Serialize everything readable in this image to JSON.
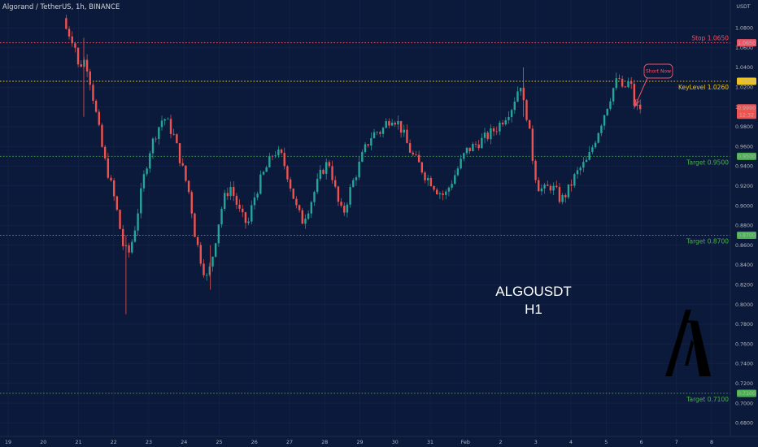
{
  "symbol_title": "Algorand / TetherUS, 1h, BINANCE",
  "currency_label": "USDT",
  "watermark": {
    "line1": "ALGOUSDT",
    "line2": "H1"
  },
  "annotation": {
    "text": "Short Now"
  },
  "colors": {
    "background": "#0b1a3a",
    "bull": "#26a69a",
    "bear": "#ef5350",
    "stop": "#f05365",
    "key": "#f0c419",
    "target": "#4caf50",
    "axis_text": "#b2b5be"
  },
  "chart_data": {
    "type": "candlestick",
    "title": "Algorand / TetherUS, 1h, BINANCE",
    "y_axis": {
      "unit": "USDT",
      "range": [
        0.67,
        1.095
      ],
      "ticks": [
        "1.0800",
        "1.0600",
        "1.0400",
        "1.0200",
        "1.0000",
        "0.9800",
        "0.9600",
        "0.9400",
        "0.9200",
        "0.9000",
        "0.8800",
        "0.8600",
        "0.8400",
        "0.8200",
        "0.8000",
        "0.7800",
        "0.7600",
        "0.7400",
        "0.7200",
        "0.7000",
        "0.6800"
      ]
    },
    "x_axis": {
      "ticks": [
        {
          "label": "19",
          "pos": 0.0
        },
        {
          "label": "20",
          "pos": 1.0
        },
        {
          "label": "21",
          "pos": 2.0
        },
        {
          "label": "22",
          "pos": 3.0
        },
        {
          "label": "23",
          "pos": 4.0
        },
        {
          "label": "24",
          "pos": 5.0
        },
        {
          "label": "25",
          "pos": 6.0
        },
        {
          "label": "26",
          "pos": 7.0
        },
        {
          "label": "27",
          "pos": 8.0
        },
        {
          "label": "28",
          "pos": 9.0
        },
        {
          "label": "29",
          "pos": 10.0
        },
        {
          "label": "30",
          "pos": 11.0
        },
        {
          "label": "31",
          "pos": 12.0
        },
        {
          "label": "Feb",
          "pos": 13.0
        },
        {
          "label": "2",
          "pos": 14.0
        },
        {
          "label": "3",
          "pos": 15.0
        },
        {
          "label": "4",
          "pos": 16.0
        },
        {
          "label": "5",
          "pos": 17.0
        },
        {
          "label": "6",
          "pos": 18.0
        },
        {
          "label": "7",
          "pos": 19.0
        },
        {
          "label": "8",
          "pos": 20.0
        }
      ]
    },
    "levels": [
      {
        "name": "Stop",
        "value": 1.065,
        "label": "Stop 1.0650",
        "badge": "1.0650",
        "kind": "stop"
      },
      {
        "name": "KeyLevel",
        "value": 1.026,
        "label": "KeyLevel 1.0260",
        "badge": "1.0260",
        "kind": "key"
      },
      {
        "name": "Target",
        "value": 0.95,
        "label": "Target 0.9500",
        "badge": "0.9500",
        "kind": "target"
      },
      {
        "name": "Target",
        "value": 0.87,
        "label": "Target 0.8700",
        "badge": "0.8700",
        "kind": "target"
      },
      {
        "name": "Target",
        "value": 0.71,
        "label": "Target 0.7100",
        "badge": "0.7100",
        "kind": "target"
      }
    ],
    "last_price": {
      "value": 0.999,
      "label": "0.9990",
      "countdown": "12:32"
    },
    "price_path": [
      [
        1.65,
        1.09
      ],
      [
        1.72,
        1.08
      ],
      [
        1.9,
        1.07
      ],
      [
        2.0,
        1.06
      ],
      [
        2.1,
        1.035
      ],
      [
        2.2,
        1.05
      ],
      [
        2.35,
        1.04
      ],
      [
        2.5,
        1.01
      ],
      [
        2.65,
        0.98
      ],
      [
        2.8,
        0.95
      ],
      [
        2.95,
        0.93
      ],
      [
        3.15,
        0.9
      ],
      [
        3.35,
        0.86
      ],
      [
        3.5,
        0.85
      ],
      [
        3.65,
        0.87
      ],
      [
        3.8,
        0.9
      ],
      [
        3.95,
        0.93
      ],
      [
        4.1,
        0.955
      ],
      [
        4.3,
        0.975
      ],
      [
        4.5,
        0.99
      ],
      [
        4.6,
        0.985
      ],
      [
        4.8,
        0.97
      ],
      [
        4.95,
        0.95
      ],
      [
        5.1,
        0.93
      ],
      [
        5.25,
        0.91
      ],
      [
        5.4,
        0.87
      ],
      [
        5.6,
        0.84
      ],
      [
        5.75,
        0.825
      ],
      [
        5.9,
        0.85
      ],
      [
        6.05,
        0.88
      ],
      [
        6.2,
        0.905
      ],
      [
        6.4,
        0.92
      ],
      [
        6.55,
        0.905
      ],
      [
        6.7,
        0.89
      ],
      [
        6.9,
        0.88
      ],
      [
        7.05,
        0.905
      ],
      [
        7.25,
        0.925
      ],
      [
        7.45,
        0.94
      ],
      [
        7.65,
        0.955
      ],
      [
        7.85,
        0.95
      ],
      [
        8.0,
        0.935
      ],
      [
        8.15,
        0.915
      ],
      [
        8.3,
        0.895
      ],
      [
        8.45,
        0.885
      ],
      [
        8.65,
        0.9
      ],
      [
        8.85,
        0.92
      ],
      [
        9.0,
        0.935
      ],
      [
        9.2,
        0.945
      ],
      [
        9.3,
        0.93
      ],
      [
        9.45,
        0.905
      ],
      [
        9.6,
        0.89
      ],
      [
        9.8,
        0.915
      ],
      [
        10.0,
        0.935
      ],
      [
        10.2,
        0.955
      ],
      [
        10.4,
        0.97
      ],
      [
        10.55,
        0.975
      ],
      [
        10.7,
        0.975
      ],
      [
        10.85,
        0.985
      ],
      [
        11.0,
        0.99
      ],
      [
        11.15,
        0.985
      ],
      [
        11.3,
        0.975
      ],
      [
        11.45,
        0.96
      ],
      [
        11.6,
        0.95
      ],
      [
        11.8,
        0.94
      ],
      [
        11.95,
        0.93
      ],
      [
        12.1,
        0.925
      ],
      [
        12.3,
        0.915
      ],
      [
        12.5,
        0.91
      ],
      [
        12.7,
        0.925
      ],
      [
        12.9,
        0.94
      ],
      [
        13.1,
        0.955
      ],
      [
        13.3,
        0.96
      ],
      [
        13.5,
        0.965
      ],
      [
        13.7,
        0.97
      ],
      [
        13.85,
        0.975
      ],
      [
        14.0,
        0.98
      ],
      [
        14.2,
        0.99
      ],
      [
        14.4,
        1.0
      ],
      [
        14.55,
        1.015
      ],
      [
        14.65,
        1.025
      ],
      [
        14.75,
        1.0
      ],
      [
        14.85,
        0.99
      ],
      [
        14.95,
        0.96
      ],
      [
        15.05,
        0.935
      ],
      [
        15.15,
        0.92
      ],
      [
        15.3,
        0.915
      ],
      [
        15.5,
        0.92
      ],
      [
        15.65,
        0.915
      ],
      [
        15.8,
        0.905
      ],
      [
        16.0,
        0.915
      ],
      [
        16.2,
        0.93
      ],
      [
        16.4,
        0.94
      ],
      [
        16.55,
        0.945
      ],
      [
        16.7,
        0.96
      ],
      [
        16.85,
        0.975
      ],
      [
        17.0,
        0.99
      ],
      [
        17.15,
        1.005
      ],
      [
        17.3,
        1.02
      ],
      [
        17.45,
        1.03
      ],
      [
        17.55,
        1.015
      ],
      [
        17.7,
        1.025
      ],
      [
        17.8,
        1.02
      ],
      [
        17.9,
        1.0
      ],
      [
        18.0,
        0.999
      ]
    ]
  }
}
